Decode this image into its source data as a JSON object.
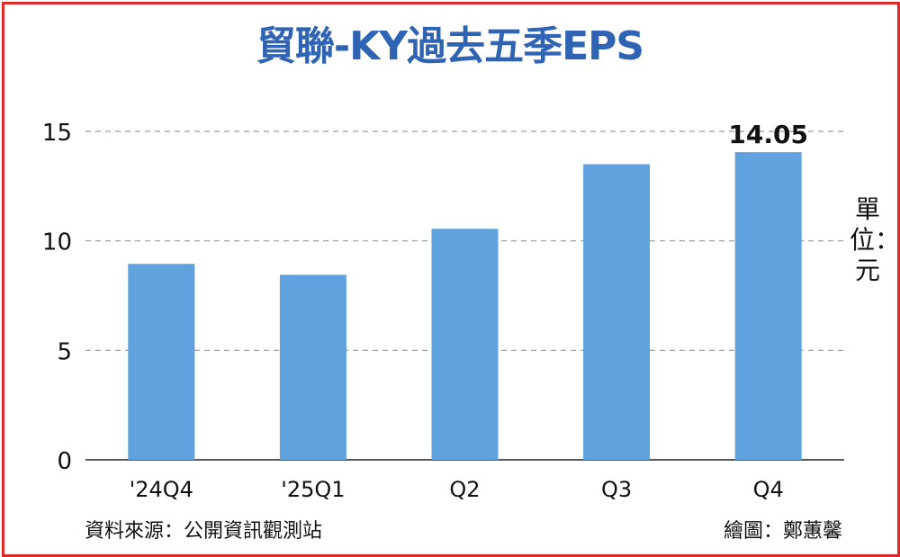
{
  "chart_data": {
    "type": "bar",
    "title": "貿聯-KY過去五季EPS",
    "categories": [
      "'24Q4",
      "'25Q1",
      "Q2",
      "Q3",
      "Q4"
    ],
    "values": [
      8.95,
      8.45,
      10.55,
      13.5,
      14.05
    ],
    "highlight_label": "14.05",
    "ylabel": "單位：元",
    "ylim": [
      0,
      15
    ],
    "yticks": [
      "0",
      "5",
      "10",
      "15"
    ],
    "grid": true,
    "bar_color": "#5fa2dd",
    "title_color": "#2f64b5",
    "border_color": "#e02a2a"
  },
  "footer": {
    "source": "資料來源：公開資訊觀測站",
    "credit": "繪圖：鄭蕙馨"
  }
}
